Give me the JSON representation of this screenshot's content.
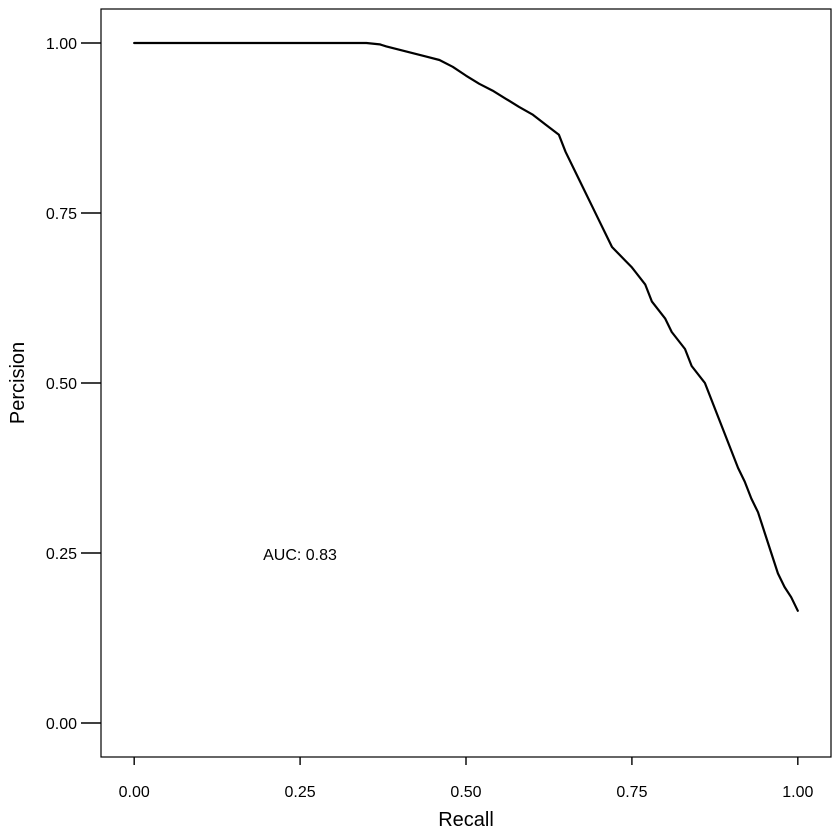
{
  "chart_data": {
    "type": "line",
    "xlabel": "Recall",
    "ylabel": "Percision",
    "annotation": "AUC: 0.83",
    "xlim": [
      -0.05,
      1.05
    ],
    "ylim": [
      -0.05,
      1.05
    ],
    "x_ticks": [
      0,
      0.25,
      0.5,
      0.75,
      1
    ],
    "x_tick_labels": [
      "0.00",
      "0.25",
      "0.50",
      "0.75",
      "1.00"
    ],
    "y_ticks": [
      0,
      0.25,
      0.5,
      0.75,
      1
    ],
    "y_tick_labels": [
      "0.00",
      "0.25",
      "0.50",
      "0.75",
      "1.00"
    ],
    "grid": false,
    "line_color": "#000000",
    "series": [
      {
        "x": [
          0.0,
          0.1,
          0.2,
          0.3,
          0.35,
          0.37,
          0.38,
          0.4,
          0.42,
          0.44,
          0.46,
          0.48,
          0.5,
          0.52,
          0.54,
          0.56,
          0.58,
          0.6,
          0.62,
          0.64,
          0.65,
          0.67,
          0.69,
          0.7,
          0.71,
          0.72,
          0.74,
          0.75,
          0.77,
          0.78,
          0.8,
          0.81,
          0.83,
          0.84,
          0.86,
          0.87,
          0.88,
          0.89,
          0.9,
          0.91,
          0.92,
          0.93,
          0.94,
          0.95,
          0.96,
          0.97,
          0.98,
          0.99,
          1.0
        ],
        "y": [
          1.0,
          1.0,
          1.0,
          1.0,
          1.0,
          0.998,
          0.995,
          0.99,
          0.985,
          0.98,
          0.975,
          0.965,
          0.952,
          0.94,
          0.93,
          0.918,
          0.906,
          0.895,
          0.88,
          0.865,
          0.84,
          0.8,
          0.76,
          0.74,
          0.72,
          0.7,
          0.68,
          0.67,
          0.645,
          0.62,
          0.595,
          0.575,
          0.55,
          0.525,
          0.5,
          0.475,
          0.45,
          0.425,
          0.4,
          0.375,
          0.355,
          0.33,
          0.31,
          0.28,
          0.25,
          0.22,
          0.2,
          0.185,
          0.165
        ]
      }
    ]
  }
}
